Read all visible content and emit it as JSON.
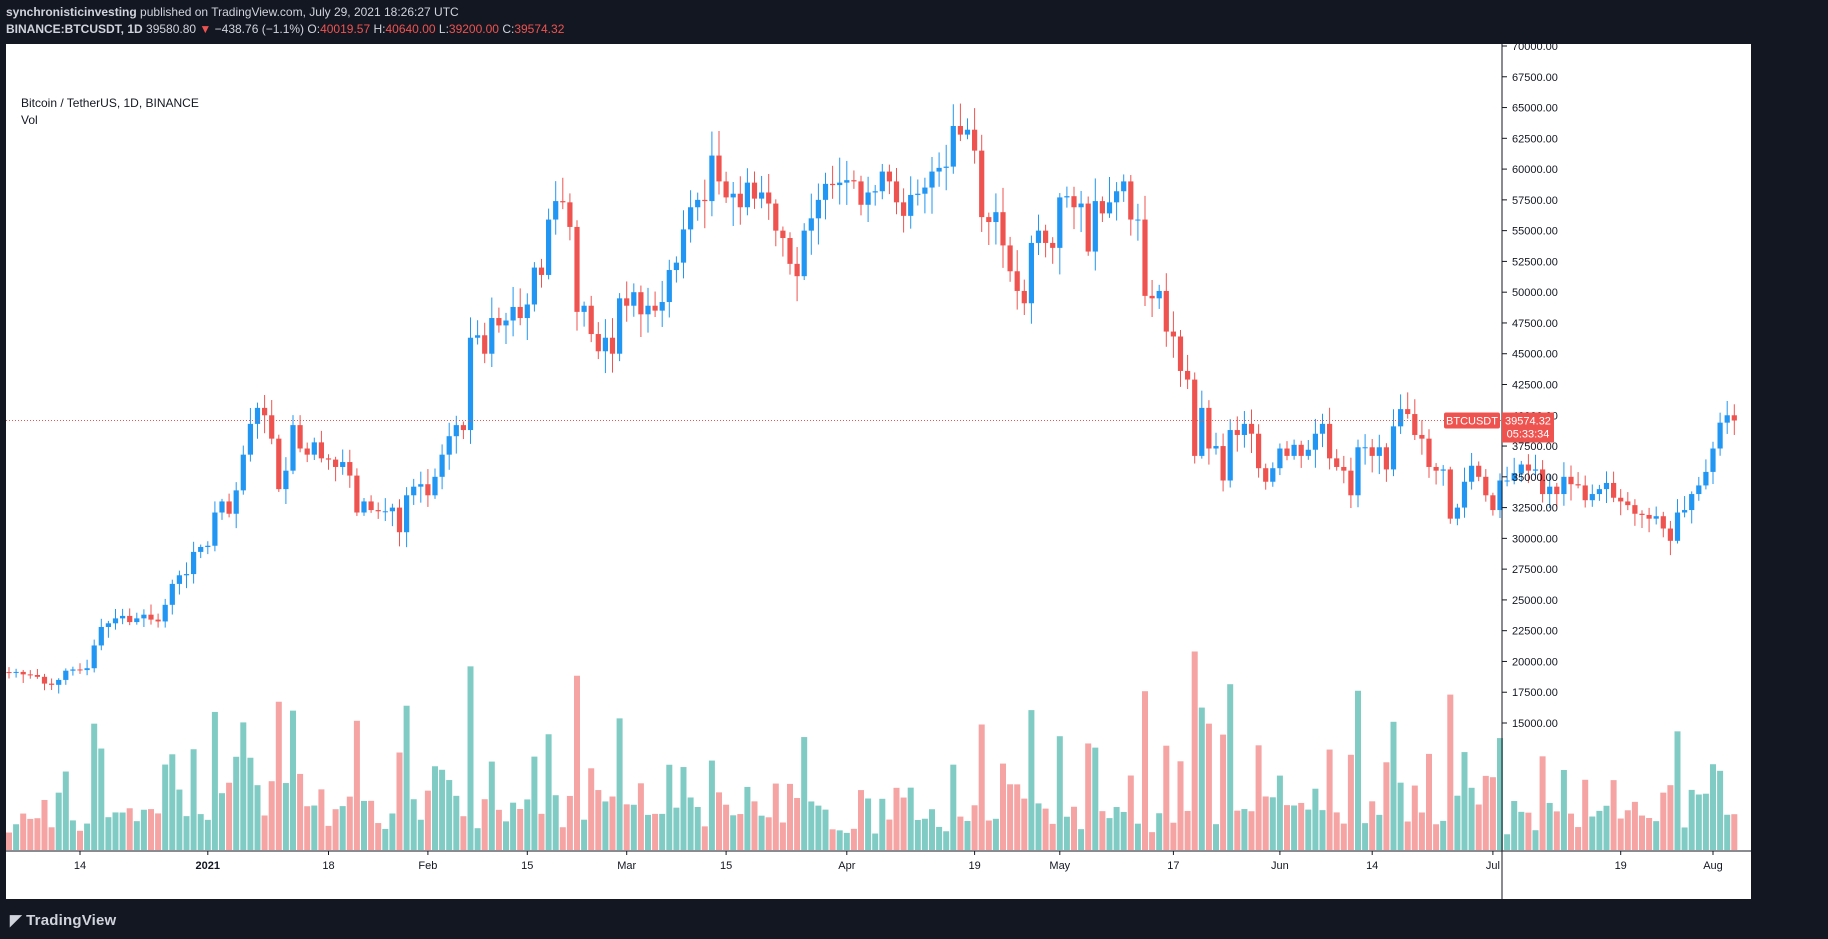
{
  "header": {
    "publisher": "synchronisticinvesting",
    "published_text": "published on TradingView.com, July 29, 2021 18:26:27 UTC",
    "symbol": "BINANCE:BTCUSDT, 1D",
    "last_value": "39580.80",
    "change_arrow": "▼",
    "change_text": "−438.76 (−1.1%)",
    "open_label": "O:",
    "open_value": "40019.57",
    "high_label": "H:",
    "high_value": "40640.00",
    "low_label": "L:",
    "low_value": "39200.00",
    "close_label": "C:",
    "close_value": "39574.32"
  },
  "legend": {
    "series_title": "Bitcoin / TetherUS, 1D, BINANCE",
    "volume_title": "Vol"
  },
  "price_tag": {
    "symbol": "BTCUSDT",
    "price": "39574.32",
    "countdown": "05:33:34"
  },
  "footer": {
    "brand": "TradingView"
  },
  "colors": {
    "up": "#2196f3",
    "down": "#ef5350",
    "vol_up": "#80cbc4",
    "vol_down": "#f5a3a3",
    "bg": "#ffffff",
    "frame": "#131722"
  },
  "chart_data": {
    "type": "candlestick",
    "title": "Bitcoin / TetherUS, 1D, BINANCE",
    "x_ticks": [
      "14",
      "2021",
      "18",
      "Feb",
      "15",
      "Mar",
      "15",
      "Apr",
      "19",
      "May",
      "17",
      "Jun",
      "14",
      "Jul",
      "19",
      "Aug"
    ],
    "x_tick_dates": [
      "2020-12-14",
      "2021-01-01",
      "2021-01-18",
      "2021-02-01",
      "2021-02-15",
      "2021-03-01",
      "2021-03-15",
      "2021-04-01",
      "2021-04-19",
      "2021-05-01",
      "2021-05-17",
      "2021-06-01",
      "2021-06-14",
      "2021-07-01",
      "2021-07-19",
      "2021-08-01"
    ],
    "y_ticks": [
      "15000.00",
      "17500.00",
      "20000.00",
      "22500.00",
      "25000.00",
      "27500.00",
      "30000.00",
      "32500.00",
      "35000.00",
      "37500.00",
      "40000.00",
      "42500.00",
      "45000.00",
      "47500.00",
      "50000.00",
      "52500.00",
      "55000.00",
      "57500.00",
      "60000.00",
      "62500.00",
      "65000.00",
      "67500.00",
      "70000.00"
    ],
    "ylim": [
      12500,
      71000
    ],
    "start_date": "2020-12-04",
    "end_date": "2021-07-29",
    "last_close": 39574.32,
    "closes": [
      19100,
      19150,
      18950,
      18900,
      18750,
      18200,
      18100,
      18500,
      19250,
      19350,
      19300,
      19450,
      21300,
      22800,
      23100,
      23500,
      23700,
      23200,
      23500,
      23800,
      23400,
      23250,
      24600,
      26300,
      27000,
      27100,
      28900,
      29300,
      29400,
      32100,
      33000,
      32000,
      33900,
      36800,
      39300,
      40600,
      40000,
      38100,
      34000,
      35500,
      39200,
      37300,
      36800,
      37800,
      36500,
      36400,
      35800,
      36200,
      35100,
      32100,
      33000,
      32300,
      32200,
      32200,
      32500,
      30500,
      33500,
      34200,
      34400,
      33500,
      35000,
      36800,
      38300,
      39200,
      38800,
      46300,
      46500,
      45000,
      47900,
      47300,
      47700,
      48800,
      47900,
      49000,
      52000,
      51400,
      55900,
      57400,
      57300,
      55300,
      48400,
      48900,
      46600,
      45200,
      46300,
      45000,
      49500,
      48900,
      50000,
      48200,
      48900,
      48500,
      49200,
      51800,
      52400,
      55100,
      56900,
      57500,
      57400,
      61100,
      59000,
      57700,
      58000,
      56900,
      58900,
      57600,
      58100,
      57200,
      55000,
      54400,
      52300,
      51300,
      55000,
      56000,
      57500,
      58800,
      58700,
      58900,
      59100,
      59000,
      57100,
      58100,
      58200,
      59800,
      59000,
      57300,
      56200,
      57900,
      58000,
      58500,
      59800,
      60100,
      60200,
      63500,
      62800,
      63200,
      61500,
      56100,
      55700,
      56500,
      53800,
      51700,
      50100,
      49100,
      54000,
      55000,
      54000,
      53600,
      57700,
      57800,
      56900,
      57200,
      53300,
      57400,
      56400,
      57300,
      58200,
      59000,
      55900,
      55900,
      49700,
      49500,
      50100,
      46800,
      46400,
      43600,
      42900,
      36700,
      40600,
      37300,
      37500,
      34700,
      38800,
      38400,
      39300,
      38500,
      35700,
      34600,
      35700,
      37300,
      36700,
      37600,
      36700,
      37200,
      38500,
      39300,
      36500,
      35800,
      35500,
      33500,
      37400,
      37400,
      36700,
      37400,
      35600,
      39100,
      40500,
      40100,
      38400,
      38100,
      35800,
      35500,
      35600,
      31600,
      32500,
      34600,
      35900,
      35000,
      33500,
      32300,
      34700,
      34700,
      35300,
      36000,
      35500,
      35600,
      33600,
      34200,
      33600,
      35000,
      34400,
      34300,
      33100,
      33600,
      34000,
      34500,
      33300,
      33000,
      32700,
      32000,
      31900,
      31600,
      31800,
      30800,
      29800,
      32100,
      32300,
      33600,
      34300,
      35400,
      37300,
      39400,
      40000,
      39574
    ],
    "volume_ylim": [
      12500,
      28000
    ]
  }
}
